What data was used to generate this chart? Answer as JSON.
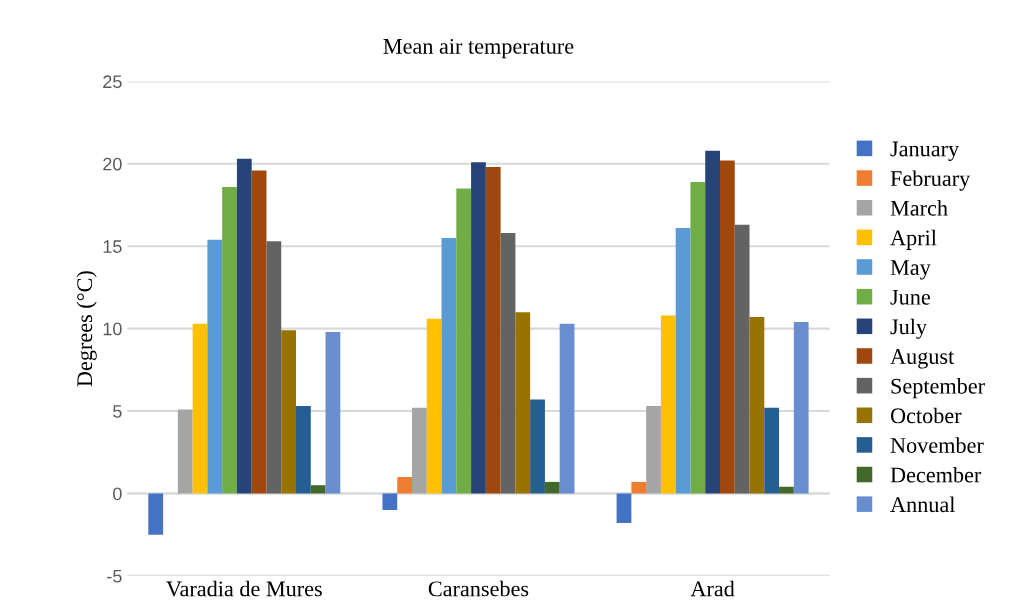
{
  "chart_data": {
    "type": "bar",
    "title": "Mean air temperature",
    "ylabel": "Degrees (°C)",
    "categories": [
      "Varadia de Mures",
      "Caransebes",
      "Arad"
    ],
    "series": [
      {
        "name": "January",
        "color": "#4472c4",
        "values": [
          -2.5,
          -1.0,
          -1.8
        ]
      },
      {
        "name": "February",
        "color": "#ed7d31",
        "values": [
          0,
          1.0,
          0.7
        ]
      },
      {
        "name": "March",
        "color": "#a5a5a5",
        "values": [
          5.1,
          5.2,
          5.3
        ]
      },
      {
        "name": "April",
        "color": "#ffc000",
        "values": [
          10.3,
          10.6,
          10.8
        ]
      },
      {
        "name": "May",
        "color": "#5b9bd5",
        "values": [
          15.4,
          15.5,
          16.1
        ]
      },
      {
        "name": "June",
        "color": "#70ad47",
        "values": [
          18.6,
          18.5,
          18.9
        ]
      },
      {
        "name": "July",
        "color": "#264478",
        "values": [
          20.3,
          20.1,
          20.8
        ]
      },
      {
        "name": "August",
        "color": "#9e480e",
        "values": [
          19.6,
          19.8,
          20.2
        ]
      },
      {
        "name": "September",
        "color": "#636363",
        "values": [
          15.3,
          15.8,
          16.3
        ]
      },
      {
        "name": "October",
        "color": "#997300",
        "values": [
          9.9,
          11.0,
          10.7
        ]
      },
      {
        "name": "November",
        "color": "#255e91",
        "values": [
          5.3,
          5.7,
          5.2
        ]
      },
      {
        "name": "December",
        "color": "#43682b",
        "values": [
          0.5,
          0.7,
          0.4
        ]
      },
      {
        "name": "Annual",
        "color": "#698ed0",
        "values": [
          9.8,
          10.3,
          10.4
        ]
      }
    ],
    "ylim": [
      -5,
      25
    ],
    "yticks": [
      -5,
      0,
      5,
      10,
      15,
      20,
      25
    ],
    "grid": "y",
    "legend": "right"
  }
}
